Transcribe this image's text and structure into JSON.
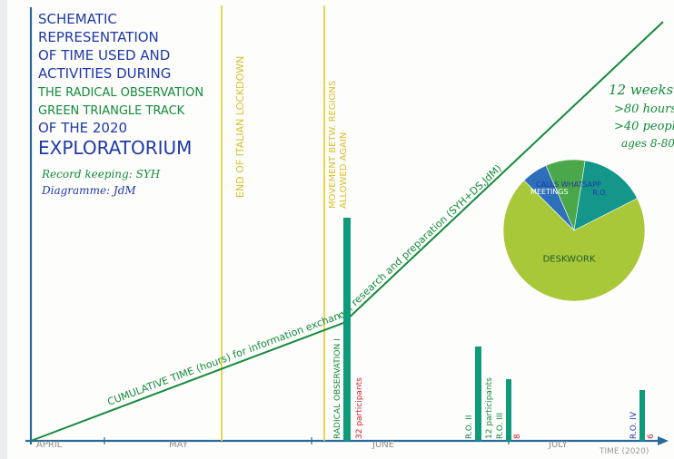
{
  "title_lines_blue": [
    "SCHEMATIC",
    "REPRESENTATION",
    "OF TIME USED AND",
    "ACTIVITIES DURING"
  ],
  "title_lines_green": [
    "THE RADICAL OBSERVATION",
    "GREEN TRIANGLE TRACK"
  ],
  "title_lines_blue2": [
    "OF THE 2020"
  ],
  "title_big": "EXPLORATORIUM",
  "credits": [
    "Record keeping: SYH",
    "Diagramme: JdM"
  ],
  "vertical_notes": {
    "lockdown": "END OF ITALIAN LOCKDOWN",
    "movement_1": "MOVEMENT BETW. REGIONS",
    "movement_2": "ALLOWED AGAIN"
  },
  "cumulative_label": "CUMULATIVE TIME (hours) for information exchange, research and preparation (SYH+DS,JdM)",
  "stats": [
    "12 weeks",
    ">80 hours",
    ">40 people",
    "ages 8-80"
  ],
  "pie": {
    "slices": [
      {
        "label": "DESKWORK",
        "value": 70,
        "color": "#a8c83a"
      },
      {
        "label": "MEETINGS",
        "value": 6,
        "color": "#2d6fb8"
      },
      {
        "label": "CALLS WHATSAPP",
        "value": 9,
        "color": "#4aa84a"
      },
      {
        "label": "R.O.",
        "value": 15,
        "color": "#14968a"
      }
    ]
  },
  "bars": [
    {
      "label": "RADICAL OBSERVATION I",
      "value": 32,
      "note": "32 participants"
    },
    {
      "label": "R.O. II",
      "value": 12,
      "note": "12 participants"
    },
    {
      "label": "R.O. III",
      "value": 8,
      "note": "8"
    },
    {
      "label": "R.O. IV",
      "value": 6,
      "note": "6"
    }
  ],
  "months": [
    "APRIL",
    "MAY",
    "JUNE",
    "JULY"
  ],
  "axis_label": "TIME (2020)",
  "colors": {
    "blue": "#1f3aa8",
    "green": "#138a3c",
    "teal": "#0f9a7a",
    "yellow": "#e6cf3a",
    "red": "#d6202e",
    "axis": "#2a6a9a"
  }
}
